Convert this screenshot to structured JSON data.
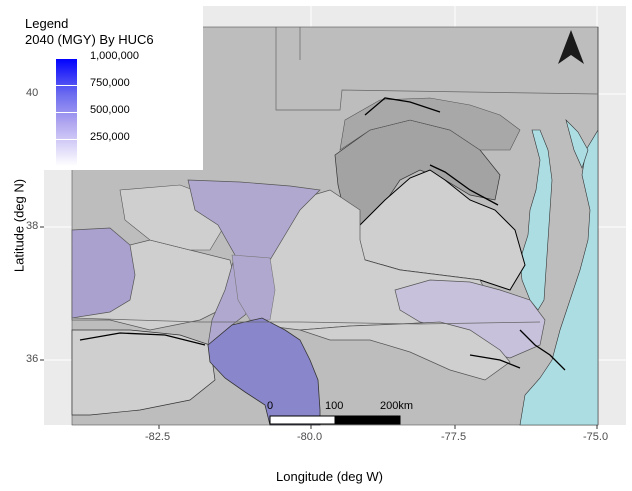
{
  "legend": {
    "title_line1": "Legend",
    "title_line2": "2040 (MGY) By HUC6",
    "gradient_colors": [
      "#ffffff",
      "#0000ff"
    ],
    "breaks": [
      {
        "value": 1000000,
        "label": "1,000,000"
      },
      {
        "value": 750000,
        "label": "750,000"
      },
      {
        "value": 500000,
        "label": "500,000"
      },
      {
        "value": 250000,
        "label": "250,000"
      }
    ]
  },
  "axes": {
    "x_title": "Longitude (deg W)",
    "y_title": "Latitude (deg N)",
    "x_ticks": [
      "-82.5",
      "-80.0",
      "-77.5",
      "-75.0"
    ],
    "y_ticks": [
      "40",
      "38",
      "36"
    ]
  },
  "scalebar": {
    "labels": [
      "0",
      "100",
      "200km"
    ]
  },
  "north_arrow": {
    "icon": "north-arrow-icon"
  },
  "colors": {
    "panel_background": "#ebebeb",
    "land": "#bdbdbd",
    "ocean": "#abdde3",
    "basin_light": "#cfcfcf",
    "basin_lavender": "#b1a8d0",
    "basin_purple": "#8a86cc"
  }
}
